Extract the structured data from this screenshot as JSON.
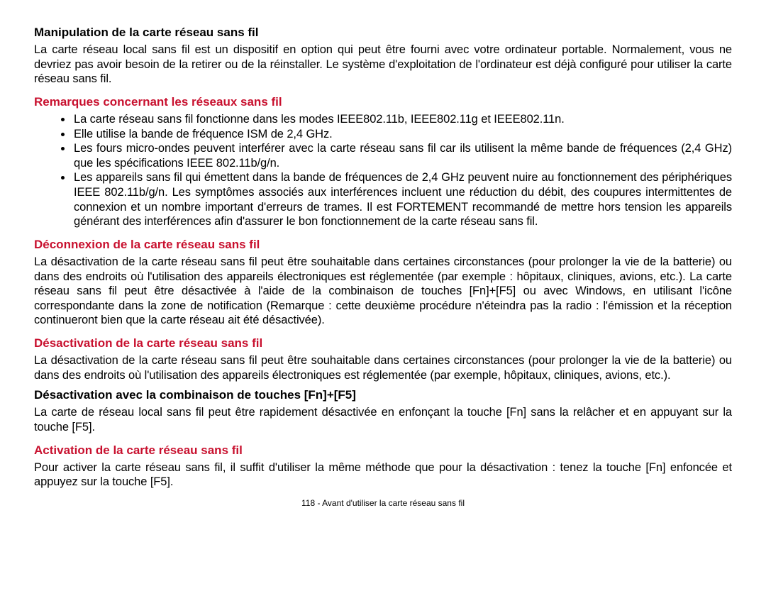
{
  "s1": {
    "title": "Manipulation de la carte réseau sans fil",
    "body": "La carte réseau local sans fil est un dispositif en option qui peut être fourni avec votre ordinateur portable. Normalement, vous ne devriez pas avoir besoin de la retirer ou de la réinstaller. Le système d'exploitation de l'ordinateur est déjà configuré pour utiliser la carte réseau sans fil."
  },
  "s2": {
    "title": "Remarques concernant les réseaux sans fil",
    "bullets": [
      "La carte réseau sans fil fonctionne dans les modes IEEE802.11b, IEEE802.11g et IEEE802.11n.",
      "Elle utilise la bande de fréquence ISM de 2,4 GHz.",
      "Les fours micro-ondes peuvent interférer avec la carte réseau sans fil car ils utilisent la même bande de fréquences (2,4 GHz) que les spécifications IEEE 802.11b/g/n.",
      "Les appareils sans fil qui émettent dans la bande de fréquences de 2,4 GHz peuvent nuire au fonctionnement des périphériques IEEE 802.11b/g/n. Les symptômes associés aux interférences incluent une réduction du débit, des coupures intermittentes de connexion et un nombre important d'erreurs de trames. Il est FORTEMENT recommandé de mettre hors tension les appareils générant des interférences afin d'assurer le bon fonctionnement de la carte réseau sans fil."
    ]
  },
  "s3": {
    "title": "Déconnexion de la carte réseau sans fil",
    "body": "La désactivation de la carte réseau sans fil peut être souhaitable dans certaines circonstances (pour prolonger la vie de la batterie) ou dans des endroits où l'utilisation des appareils électroniques est réglementée (par exemple : hôpitaux, cliniques, avions, etc.). La carte réseau sans fil peut être désactivée à l'aide de la combinaison de touches [Fn]+[F5] ou avec Windows, en utilisant l'icône correspondante dans la zone de notification (Remarque : cette deuxième procédure n'éteindra pas la radio : l'émission et la réception continueront bien que la carte réseau ait été désactivée)."
  },
  "s4": {
    "title": "Désactivation de la carte réseau sans fil",
    "body": "La désactivation de la carte réseau sans fil peut être souhaitable dans certaines circonstances (pour prolonger la vie de la batterie) ou dans des endroits où l'utilisation des appareils électroniques est réglementée (par exemple, hôpitaux, cliniques, avions, etc.)."
  },
  "s5": {
    "title": "Désactivation avec la combinaison de touches [Fn]+[F5]",
    "body": "La carte de réseau local sans fil peut être rapidement désactivée en enfonçant la touche [Fn] sans la relâcher et en appuyant sur la touche [F5]."
  },
  "s6": {
    "title": "Activation de la carte réseau sans fil",
    "body": "Pour activer la carte réseau sans fil, il suffit d'utiliser la même méthode que pour la désactivation : tenez la touche [Fn] enfoncée et appuyez sur la touche [F5]."
  },
  "footer": "118 - Avant d'utiliser la carte réseau sans fil"
}
